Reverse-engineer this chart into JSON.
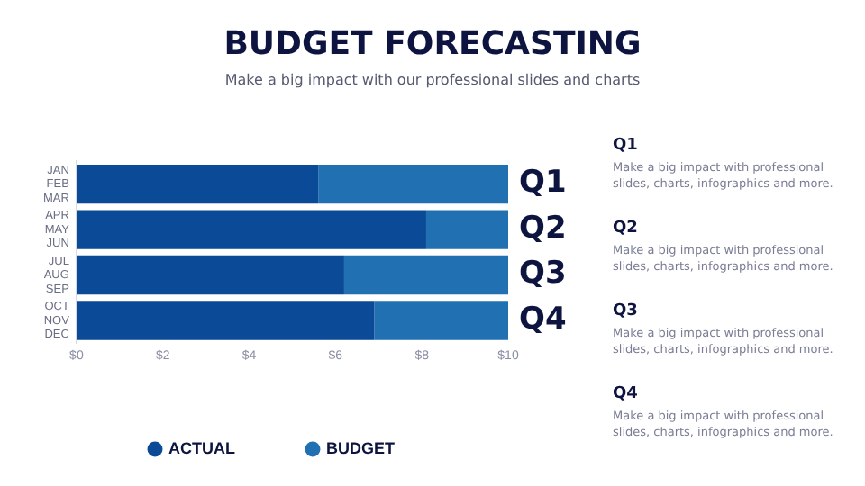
{
  "chart_data": {
    "type": "bar",
    "orientation": "horizontal",
    "stacked": true,
    "title": "BUDGET FORECASTING",
    "subtitle": "Make a big impact with our professional slides and charts",
    "categories": [
      "JAN\nFEB\nMAR",
      "APR\nMAY\nJUN",
      "JUL\nAUG\nSEP",
      "OCT\nNOV\nDEC"
    ],
    "series": [
      {
        "name": "ACTUAL",
        "color": "#0a4a96",
        "values": [
          5.6,
          8.1,
          6.2,
          6.9
        ]
      },
      {
        "name": "BUDGET",
        "color": "#2171b2",
        "values": [
          4.4,
          1.9,
          3.8,
          3.1
        ]
      }
    ],
    "xlim": [
      0,
      10
    ],
    "xticks": [
      {
        "value": 0,
        "label": "$0"
      },
      {
        "value": 2,
        "label": "$2"
      },
      {
        "value": 4,
        "label": "$4"
      },
      {
        "value": 6,
        "label": "$6"
      },
      {
        "value": 8,
        "label": "$8"
      },
      {
        "value": 10,
        "label": "$10"
      }
    ],
    "grid": false,
    "legend": "bottom",
    "annotations": [
      "Q1",
      "Q2",
      "Q3",
      "Q4",
      "Q1",
      "Make a big impact with professional slides, charts, infographics and more.",
      "Q2",
      "Make a big impact with professional slides, charts, infographics and more.",
      "Q3",
      "Make a big impact with professional slides, charts, infographics and more.",
      "Q4",
      "Make a big impact with professional slides, charts, infographics and more."
    ]
  }
}
